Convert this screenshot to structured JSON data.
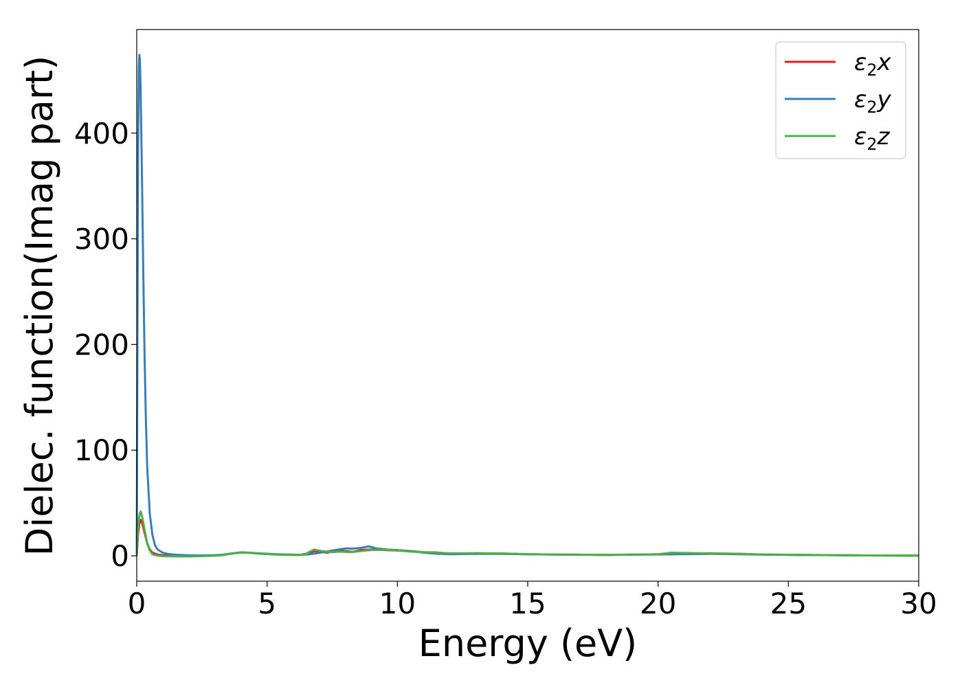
{
  "chart_data": {
    "type": "line",
    "xlabel": "Energy (eV)",
    "ylabel": "Dielec. function(Imag part)",
    "xlim": [
      0,
      30
    ],
    "ylim": [
      -24,
      498
    ],
    "xticks": [
      0,
      5,
      10,
      15,
      20,
      25,
      30
    ],
    "yticks": [
      0,
      100,
      200,
      300,
      400
    ],
    "grid": false,
    "legend_position": "top-right",
    "series": [
      {
        "name": "ε2x",
        "legend_symbol": "ε",
        "legend_subscript": "2",
        "legend_suffix": "x",
        "color": "#e41a1c",
        "points": [
          [
            0,
            0
          ],
          [
            0.05,
            20
          ],
          [
            0.1,
            30
          ],
          [
            0.15,
            34
          ],
          [
            0.2,
            32
          ],
          [
            0.3,
            22
          ],
          [
            0.4,
            12
          ],
          [
            0.5,
            6
          ],
          [
            0.6,
            3
          ],
          [
            0.8,
            1.2
          ],
          [
            1.0,
            0.6
          ],
          [
            1.5,
            0.2
          ],
          [
            2.0,
            0.1
          ],
          [
            2.5,
            0.1
          ],
          [
            3.0,
            0.3
          ],
          [
            3.3,
            0.8
          ],
          [
            3.6,
            2
          ],
          [
            4.0,
            3.3
          ],
          [
            4.3,
            3.0
          ],
          [
            4.8,
            2.0
          ],
          [
            5.5,
            1.2
          ],
          [
            6.2,
            0.8
          ],
          [
            6.5,
            1.3
          ],
          [
            6.8,
            4.5
          ],
          [
            7.0,
            4.0
          ],
          [
            7.3,
            3.0
          ],
          [
            7.7,
            5.0
          ],
          [
            8.0,
            4.5
          ],
          [
            8.3,
            3.8
          ],
          [
            8.6,
            5.5
          ],
          [
            9.0,
            6.0
          ],
          [
            9.5,
            5.5
          ],
          [
            10.0,
            5.0
          ],
          [
            10.5,
            4.5
          ],
          [
            11.0,
            3.5
          ],
          [
            11.5,
            3.2
          ],
          [
            12.0,
            2.0
          ],
          [
            12.5,
            2.0
          ],
          [
            13.0,
            2.5
          ],
          [
            14.0,
            2.2
          ],
          [
            15.0,
            1.5
          ],
          [
            16.0,
            1.2
          ],
          [
            17.0,
            1.0
          ],
          [
            18.0,
            0.9
          ],
          [
            19.0,
            1.2
          ],
          [
            20.0,
            1.5
          ],
          [
            20.5,
            2.8
          ],
          [
            21.0,
            2.5
          ],
          [
            22.0,
            2.3
          ],
          [
            23.0,
            2.0
          ],
          [
            24.0,
            1.3
          ],
          [
            25.0,
            1.0
          ],
          [
            26.0,
            0.8
          ],
          [
            27.0,
            0.6
          ],
          [
            28.0,
            0.4
          ],
          [
            29.0,
            0.3
          ],
          [
            30.0,
            0.2
          ]
        ]
      },
      {
        "name": "ε2y",
        "legend_symbol": "ε",
        "legend_subscript": "2",
        "legend_suffix": "y",
        "color": "#377eb8",
        "points": [
          [
            0,
            0
          ],
          [
            0.02,
            150
          ],
          [
            0.05,
            380
          ],
          [
            0.08,
            460
          ],
          [
            0.1,
            474
          ],
          [
            0.12,
            470
          ],
          [
            0.15,
            440
          ],
          [
            0.2,
            360
          ],
          [
            0.25,
            270
          ],
          [
            0.3,
            190
          ],
          [
            0.35,
            130
          ],
          [
            0.4,
            85
          ],
          [
            0.5,
            40
          ],
          [
            0.6,
            20
          ],
          [
            0.7,
            10
          ],
          [
            0.8,
            6
          ],
          [
            1.0,
            3
          ],
          [
            1.2,
            1.8
          ],
          [
            1.5,
            1.0
          ],
          [
            2.0,
            0.5
          ],
          [
            2.5,
            0.4
          ],
          [
            3.0,
            0.6
          ],
          [
            3.3,
            1.0
          ],
          [
            3.6,
            2.2
          ],
          [
            4.0,
            3.3
          ],
          [
            4.3,
            3.0
          ],
          [
            4.8,
            2.2
          ],
          [
            5.5,
            1.4
          ],
          [
            6.2,
            1.0
          ],
          [
            6.6,
            1.4
          ],
          [
            7.0,
            2.8
          ],
          [
            7.5,
            5.0
          ],
          [
            8.0,
            7.0
          ],
          [
            8.3,
            6.8
          ],
          [
            8.6,
            7.5
          ],
          [
            8.9,
            9.0
          ],
          [
            9.2,
            7.0
          ],
          [
            9.6,
            6.0
          ],
          [
            10.0,
            5.5
          ],
          [
            10.5,
            4.5
          ],
          [
            11.0,
            3.0
          ],
          [
            11.5,
            2.0
          ],
          [
            12.0,
            1.5
          ],
          [
            13.0,
            1.8
          ],
          [
            14.0,
            1.8
          ],
          [
            15.0,
            1.5
          ],
          [
            16.0,
            1.3
          ],
          [
            17.0,
            1.1
          ],
          [
            18.0,
            0.9
          ],
          [
            19.0,
            1.0
          ],
          [
            20.0,
            1.3
          ],
          [
            21.0,
            1.6
          ],
          [
            22.0,
            1.8
          ],
          [
            23.0,
            1.5
          ],
          [
            24.0,
            1.1
          ],
          [
            25.0,
            0.9
          ],
          [
            26.0,
            0.7
          ],
          [
            27.0,
            0.5
          ],
          [
            28.0,
            0.4
          ],
          [
            29.0,
            0.3
          ],
          [
            30.0,
            0.2
          ]
        ]
      },
      {
        "name": "ε2z",
        "legend_symbol": "ε",
        "legend_subscript": "2",
        "legend_suffix": "z",
        "color": "#4daf4a",
        "points": [
          [
            0,
            0
          ],
          [
            0.05,
            25
          ],
          [
            0.1,
            38
          ],
          [
            0.15,
            42
          ],
          [
            0.2,
            38
          ],
          [
            0.3,
            25
          ],
          [
            0.4,
            12
          ],
          [
            0.5,
            5
          ],
          [
            0.6,
            1.5
          ],
          [
            0.8,
            0.2
          ],
          [
            1.0,
            -0.3
          ],
          [
            1.5,
            -0.6
          ],
          [
            2.0,
            -0.6
          ],
          [
            2.5,
            -0.3
          ],
          [
            3.0,
            0.1
          ],
          [
            3.3,
            0.6
          ],
          [
            3.6,
            2
          ],
          [
            4.0,
            3.0
          ],
          [
            4.3,
            2.8
          ],
          [
            4.8,
            1.8
          ],
          [
            5.5,
            1.0
          ],
          [
            6.2,
            0.8
          ],
          [
            6.5,
            2.0
          ],
          [
            6.8,
            6.0
          ],
          [
            7.1,
            4.5
          ],
          [
            7.5,
            3.5
          ],
          [
            7.8,
            4.0
          ],
          [
            8.2,
            3.5
          ],
          [
            8.6,
            4.5
          ],
          [
            9.0,
            5.5
          ],
          [
            9.5,
            5.8
          ],
          [
            10.0,
            5.2
          ],
          [
            10.5,
            4.0
          ],
          [
            11.0,
            3.5
          ],
          [
            11.5,
            3.0
          ],
          [
            12.0,
            2.5
          ],
          [
            12.5,
            2.4
          ],
          [
            13.0,
            2.5
          ],
          [
            14.0,
            2.3
          ],
          [
            15.0,
            1.6
          ],
          [
            16.0,
            1.3
          ],
          [
            17.0,
            1.1
          ],
          [
            18.0,
            0.8
          ],
          [
            19.0,
            1.2
          ],
          [
            20.0,
            1.4
          ],
          [
            20.5,
            3.0
          ],
          [
            21.0,
            2.7
          ],
          [
            22.0,
            2.2
          ],
          [
            23.0,
            2.0
          ],
          [
            24.0,
            1.3
          ],
          [
            25.0,
            1.0
          ],
          [
            26.0,
            0.8
          ],
          [
            27.0,
            0.6
          ],
          [
            28.0,
            0.4
          ],
          [
            29.0,
            0.3
          ],
          [
            30.0,
            0.2
          ]
        ]
      }
    ]
  }
}
